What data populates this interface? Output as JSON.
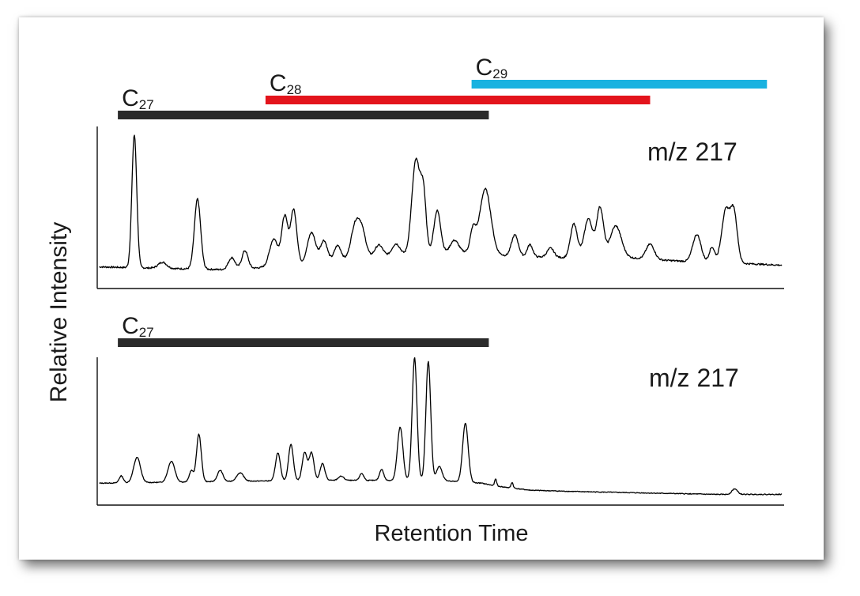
{
  "chart_data": [
    {
      "type": "line",
      "title": "",
      "annotation": "m/z 217",
      "xlabel": "Retention Time",
      "ylabel": "Relative Intensity",
      "xlim": [
        0,
        100
      ],
      "ylim": [
        0,
        100
      ],
      "ranges": [
        {
          "base": "C",
          "sub": "27",
          "start": 3,
          "end": 57,
          "color": "#2b2b2b"
        },
        {
          "base": "C",
          "sub": "28",
          "start": 24.5,
          "end": 80.5,
          "color": "#e3141c"
        },
        {
          "base": "C",
          "sub": "29",
          "start": 54.5,
          "end": 97.5,
          "color": "#19b2e0"
        }
      ],
      "series": [
        {
          "color": "#000000",
          "baseline": [
            [
              0,
              8
            ],
            [
              10,
              7
            ],
            [
              20,
              6
            ],
            [
              30,
              10
            ],
            [
              40,
              14
            ],
            [
              50,
              17
            ],
            [
              55,
              18
            ],
            [
              60,
              15
            ],
            [
              68,
              14
            ],
            [
              75,
              15
            ],
            [
              80,
              13
            ],
            [
              88,
              11
            ],
            [
              95,
              10
            ],
            [
              100,
              9
            ]
          ],
          "peaks": [
            [
              5.4,
              87,
              0.35
            ],
            [
              9.5,
              4,
              0.6
            ],
            [
              14.6,
              46,
              0.45
            ],
            [
              19.6,
              8,
              0.5
            ],
            [
              21.5,
              12,
              0.45
            ],
            [
              25.7,
              18,
              0.6
            ],
            [
              27.3,
              32,
              0.45
            ],
            [
              28.6,
              36,
              0.45
            ],
            [
              31.2,
              20,
              0.6
            ],
            [
              33,
              14,
              0.5
            ],
            [
              35,
              10,
              0.5
            ],
            [
              37.5,
              20,
              0.6
            ],
            [
              38.5,
              18,
              0.6
            ],
            [
              41,
              8,
              0.6
            ],
            [
              43.5,
              8,
              0.6
            ],
            [
              46.4,
              62,
              0.6
            ],
            [
              47.5,
              36,
              0.4
            ],
            [
              49.5,
              28,
              0.5
            ],
            [
              52,
              8,
              0.6
            ],
            [
              54.7,
              14,
              0.4
            ],
            [
              56.5,
              42,
              0.8
            ],
            [
              60.8,
              14,
              0.5
            ],
            [
              63,
              8,
              0.4
            ],
            [
              66,
              6,
              0.5
            ],
            [
              69.4,
              22,
              0.5
            ],
            [
              71.5,
              25,
              0.6
            ],
            [
              73.2,
              32,
              0.5
            ],
            [
              75.5,
              20,
              0.8
            ],
            [
              80.5,
              10,
              0.6
            ],
            [
              87.3,
              18,
              0.6
            ],
            [
              89.5,
              10,
              0.4
            ],
            [
              91.5,
              34,
              0.6
            ],
            [
              92.7,
              32,
              0.5
            ]
          ]
        },
        {
          "color": "#000000",
          "baseline": [
            [
              0,
              10
            ],
            [
              15,
              11
            ],
            [
              30,
              12
            ],
            [
              40,
              12
            ],
            [
              50,
              12
            ],
            [
              56,
              10
            ],
            [
              58,
              8
            ],
            [
              63,
              5
            ],
            [
              70,
              4
            ],
            [
              80,
              3
            ],
            [
              90,
              2
            ],
            [
              100,
              2
            ]
          ],
          "peaks": [
            [
              3.5,
              5,
              0.3
            ],
            [
              5.8,
              18,
              0.5
            ],
            [
              10.8,
              15,
              0.5
            ],
            [
              13.7,
              8,
              0.3
            ],
            [
              14.8,
              34,
              0.35
            ],
            [
              17.9,
              8,
              0.4
            ],
            [
              20.8,
              6,
              0.5
            ],
            [
              26.3,
              20,
              0.35
            ],
            [
              28.2,
              26,
              0.35
            ],
            [
              30.2,
              20,
              0.35
            ],
            [
              31.2,
              20,
              0.35
            ],
            [
              32.8,
              12,
              0.35
            ],
            [
              35.5,
              3,
              0.4
            ],
            [
              38.5,
              5,
              0.3
            ],
            [
              41.4,
              8,
              0.3
            ],
            [
              44.1,
              38,
              0.4
            ],
            [
              46.2,
              88,
              0.35
            ],
            [
              48.2,
              85,
              0.35
            ],
            [
              49.8,
              10,
              0.4
            ],
            [
              53.6,
              42,
              0.4
            ],
            [
              58,
              5,
              0.15
            ],
            [
              60.4,
              4,
              0.15
            ],
            [
              92.8,
              4,
              0.4
            ]
          ]
        }
      ]
    }
  ],
  "panels": [
    {
      "annotation": "m/z 217"
    },
    {
      "annotation": "m/z 217"
    }
  ]
}
